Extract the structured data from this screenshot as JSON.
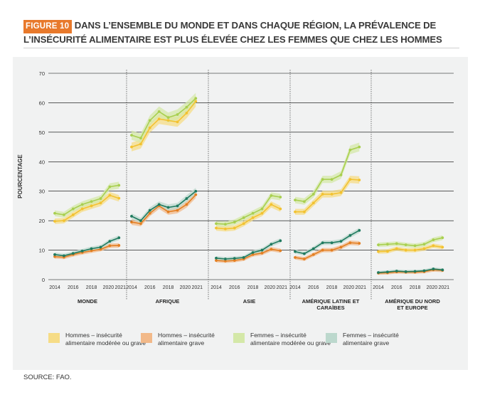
{
  "header": {
    "figure_label": "FIGURE 10",
    "title_line1": "DANS L’ENSEMBLE DU MONDE ET DANS CHAQUE RÉGION, LA PRÉVALENCE DE",
    "title_line2": "L’INSÉCURITÉ ALIMENTAIRE EST PLUS ÉLEVÉE CHEZ LES FEMMES QUE CHEZ LES HOMMES"
  },
  "source": "SOURCE: FAO.",
  "colors": {
    "hommes_moderee": "#f2c230",
    "hommes_grave": "#e37f22",
    "femmes_moderee": "#a8cf4f",
    "femmes_grave": "#1f7a5f",
    "panel_bg": "#f1f2f2",
    "badge": "#e8792b"
  },
  "chart_data": {
    "type": "line",
    "ylabel": "POURCENTAGE",
    "ylim": [
      0,
      70
    ],
    "yticks": [
      "0",
      "10",
      "20",
      "30",
      "40",
      "50",
      "60",
      "70"
    ],
    "grid": true,
    "x": [
      2014,
      2015,
      2016,
      2017,
      2018,
      2019,
      2020,
      2021
    ],
    "xtick_labels": [
      "2014",
      "2016",
      "2018",
      "2020",
      "2021"
    ],
    "legend_position": "bottom",
    "legend": [
      {
        "key": "hommes_moderee",
        "label": "Hommes – insécurité alimentaire modérée ou grave"
      },
      {
        "key": "hommes_grave",
        "label": "Hommes – insécurité alimentaire grave"
      },
      {
        "key": "femmes_moderee",
        "label": "Femmes – insécurité alimentaire modérée ou grave"
      },
      {
        "key": "femmes_grave",
        "label": "Femmes – insécurité alimentaire grave"
      }
    ],
    "panels": [
      {
        "name": "MONDE",
        "series": {
          "hommes_moderee": [
            19.8,
            20.0,
            22.0,
            24.0,
            25.0,
            26.0,
            28.6,
            27.6
          ],
          "femmes_moderee": [
            22.5,
            22.0,
            24.0,
            25.5,
            26.5,
            27.5,
            31.5,
            32.0
          ],
          "hommes_grave": [
            7.8,
            7.6,
            8.5,
            9.2,
            9.8,
            10.3,
            11.5,
            11.6
          ],
          "femmes_grave": [
            8.5,
            8.1,
            8.9,
            9.7,
            10.5,
            11.0,
            13.0,
            14.2
          ]
        }
      },
      {
        "name": "AFRIQUE",
        "series": {
          "hommes_moderee": [
            45.0,
            46.0,
            51.5,
            54.5,
            54.0,
            53.5,
            56.5,
            60.5
          ],
          "femmes_moderee": [
            49.0,
            48.0,
            54.0,
            57.0,
            55.0,
            56.0,
            58.5,
            61.5
          ],
          "hommes_grave": [
            19.5,
            19.0,
            22.5,
            25.0,
            23.0,
            23.5,
            25.5,
            28.8
          ],
          "femmes_grave": [
            21.5,
            20.0,
            23.5,
            25.5,
            24.5,
            25.0,
            27.5,
            30.0
          ]
        }
      },
      {
        "name": "ASIE",
        "series": {
          "hommes_moderee": [
            17.5,
            17.2,
            17.5,
            19.0,
            21.0,
            22.5,
            25.5,
            24.0
          ],
          "femmes_moderee": [
            19.0,
            18.8,
            19.5,
            21.0,
            22.5,
            24.0,
            28.5,
            28.0
          ],
          "hommes_grave": [
            6.5,
            6.3,
            6.5,
            7.0,
            8.5,
            9.0,
            10.3,
            9.8
          ],
          "femmes_grave": [
            7.3,
            7.0,
            7.2,
            7.5,
            9.2,
            10.0,
            12.0,
            13.2
          ]
        }
      },
      {
        "name": "AMÉRIQUE LATINE ET CARAÏBES",
        "series": {
          "hommes_moderee": [
            23.0,
            23.0,
            26.0,
            29.0,
            29.0,
            29.5,
            34.0,
            33.8
          ],
          "femmes_moderee": [
            27.0,
            26.5,
            29.0,
            34.0,
            34.0,
            35.5,
            44.0,
            45.0
          ],
          "hommes_grave": [
            7.5,
            7.0,
            8.5,
            10.0,
            10.0,
            11.0,
            12.5,
            12.3
          ],
          "femmes_grave": [
            9.5,
            8.8,
            10.5,
            12.5,
            12.5,
            13.0,
            15.0,
            16.7
          ]
        }
      },
      {
        "name": "AMÉRIQUE DU NORD ET EUROPE",
        "series": {
          "hommes_moderee": [
            9.5,
            9.6,
            10.5,
            10.0,
            10.0,
            10.5,
            11.5,
            11.0
          ],
          "femmes_moderee": [
            11.8,
            12.0,
            12.2,
            11.8,
            11.5,
            12.0,
            13.5,
            14.2
          ],
          "hommes_grave": [
            2.2,
            2.3,
            2.6,
            2.5,
            2.5,
            2.7,
            3.3,
            3.1
          ],
          "femmes_grave": [
            2.4,
            2.6,
            2.9,
            2.7,
            2.8,
            3.0,
            3.6,
            3.3
          ]
        }
      }
    ]
  }
}
